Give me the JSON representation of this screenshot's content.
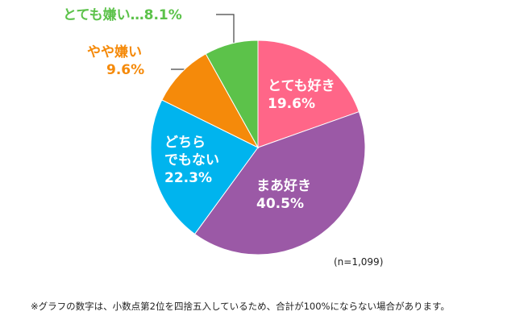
{
  "chart_data": {
    "type": "pie",
    "categories": [
      "とても好き",
      "まあ好き",
      "どちら\nでもない",
      "やや嫌い",
      "とても嫌い"
    ],
    "values": [
      19.6,
      40.5,
      22.3,
      9.6,
      8.1
    ],
    "value_labels": [
      "19.6%",
      "40.5%",
      "22.3%",
      "9.6%",
      "…8.1%"
    ],
    "colors": [
      "#ff6688",
      "#9b59a6",
      "#00b4ee",
      "#f58a0a",
      "#5cc24a"
    ],
    "note": "(n=1,099)",
    "footnote": "※グラフの数字は、小数点第2位を四捨五入しているため、合計が100%にならない場合があります。"
  }
}
